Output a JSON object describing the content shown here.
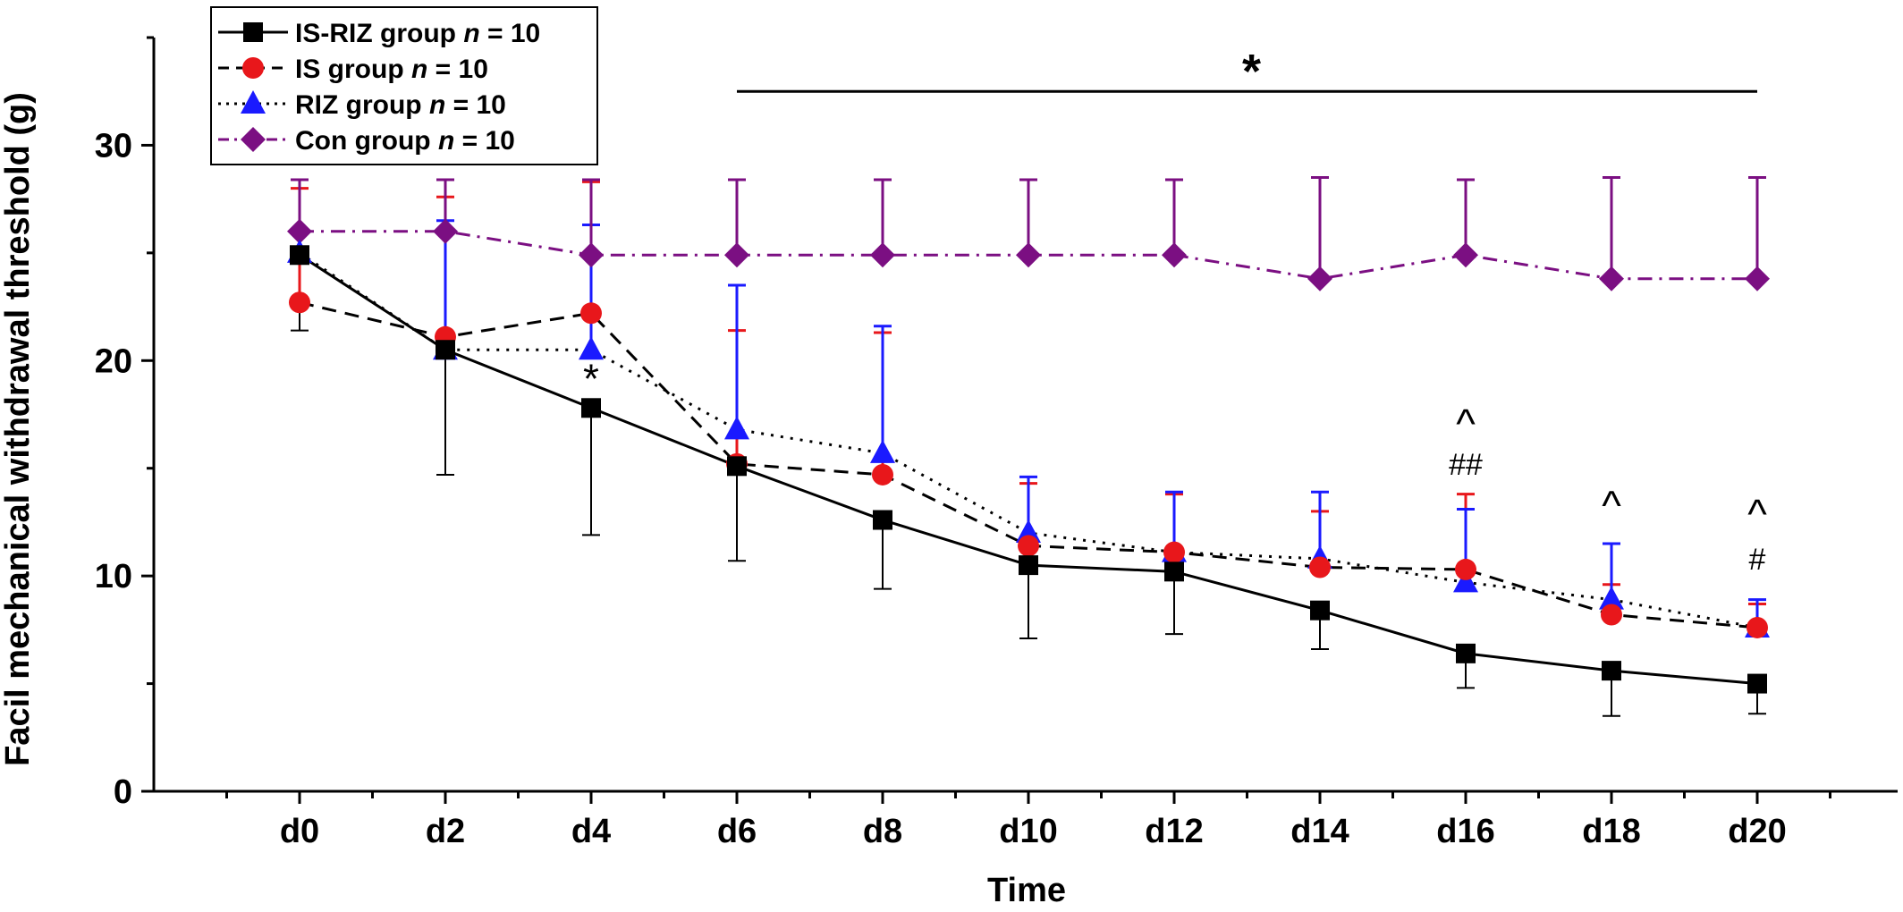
{
  "chart_data": {
    "type": "line",
    "xlabel": "Time",
    "ylabel": "Facil mechanical withdrawal threshold (g)",
    "categories": [
      "d0",
      "d2",
      "d4",
      "d6",
      "d8",
      "d10",
      "d12",
      "d14",
      "d16",
      "d18",
      "d20"
    ],
    "ylim": [
      0,
      35
    ],
    "yticks": [
      0,
      10,
      20,
      30
    ],
    "series": [
      {
        "name": "IS-RIZ group",
        "n_label": "n",
        "n_value": "= 10",
        "color": "#000000",
        "marker": "square",
        "dash": "solid",
        "values": [
          24.9,
          20.5,
          17.8,
          15.1,
          12.6,
          10.5,
          10.2,
          8.4,
          6.4,
          5.6,
          5.0
        ],
        "err_up": [
          null,
          null,
          null,
          null,
          null,
          null,
          null,
          null,
          null,
          null,
          null
        ],
        "err_down": [
          3.5,
          5.8,
          5.9,
          4.4,
          3.2,
          3.4,
          2.9,
          1.8,
          1.6,
          2.1,
          1.4
        ]
      },
      {
        "name": "IS group",
        "n_label": "n",
        "n_value": "= 10",
        "color": "#e8171b",
        "marker": "circle",
        "dash": "dashed",
        "values": [
          22.7,
          21.1,
          22.2,
          15.2,
          14.7,
          11.4,
          11.1,
          10.4,
          10.3,
          8.2,
          7.6
        ],
        "err_up": [
          5.3,
          6.5,
          6.1,
          6.2,
          6.6,
          2.9,
          2.7,
          2.6,
          3.5,
          1.4,
          1.1
        ],
        "err_down": [
          null,
          null,
          null,
          null,
          null,
          null,
          null,
          null,
          null,
          null,
          null
        ]
      },
      {
        "name": "RIZ group",
        "n_label": "n",
        "n_value": "= 10",
        "color": "#1a1aff",
        "marker": "triangle",
        "dash": "dotted",
        "values": [
          25.0,
          20.5,
          20.5,
          16.8,
          15.7,
          12.0,
          11.1,
          10.8,
          9.7,
          8.9,
          7.6
        ],
        "err_up": [
          3.4,
          6.0,
          5.8,
          6.7,
          5.9,
          2.6,
          2.8,
          3.1,
          3.4,
          2.6,
          1.3
        ],
        "err_down": [
          null,
          null,
          null,
          null,
          null,
          null,
          null,
          null,
          null,
          null,
          null
        ]
      },
      {
        "name": "Con group",
        "n_label": "n",
        "n_value": "= 10",
        "color": "#7b0f82",
        "marker": "diamond",
        "dash": "dashdot",
        "values": [
          26.0,
          26.0,
          24.9,
          24.9,
          24.9,
          24.9,
          24.9,
          23.8,
          24.9,
          23.8,
          23.8
        ],
        "err_up": [
          2.4,
          2.4,
          3.5,
          3.5,
          3.5,
          3.5,
          3.5,
          4.7,
          3.5,
          4.7,
          4.7
        ],
        "err_down": [
          null,
          null,
          null,
          null,
          null,
          null,
          null,
          null,
          null,
          null,
          null
        ]
      }
    ],
    "annotations": [
      {
        "text": "*",
        "x": "d4",
        "y": 18.5,
        "size": "large"
      },
      {
        "text": "^",
        "x": "d16",
        "y": 16.4,
        "size": "large"
      },
      {
        "text": "##",
        "x": "d16",
        "y": 14.7,
        "size": "normal"
      },
      {
        "text": "^",
        "x": "d18",
        "y": 12.6,
        "size": "large"
      },
      {
        "text": "^",
        "x": "d20",
        "y": 12.2,
        "size": "large"
      },
      {
        "text": "#",
        "x": "d20",
        "y": 10.3,
        "size": "normal"
      }
    ],
    "significance_bar": {
      "text": "*",
      "from": "d6",
      "to": "d20",
      "y": 32.5
    },
    "legend_position": "top-left",
    "grid": false
  }
}
